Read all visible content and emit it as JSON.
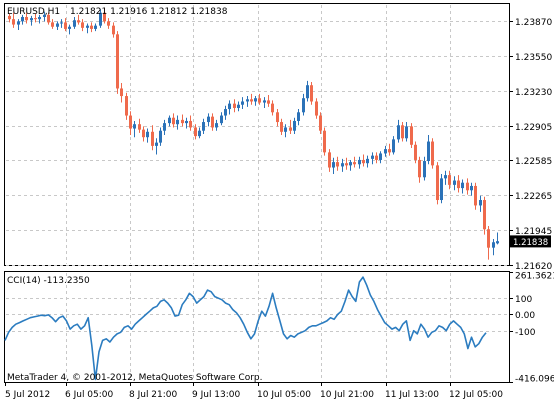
{
  "header": {
    "symbol_timeframe": "EURUSD,H1",
    "ohlc": "1.21821 1.21916 1.21812 1.21838"
  },
  "indicator": {
    "label": "CCI(14) -113.2350"
  },
  "footer": {
    "copyright": "MetaTrader 4, © 2001-2012, MetaQuotes Software Corp."
  },
  "colors": {
    "bull": "#2b72b8",
    "bear": "#ef6a4c",
    "grid": "#c8c8c8",
    "cci_line": "#2b7cc0",
    "price_tag_bg": "#000000",
    "price_tag_fg": "#ffffff"
  },
  "chart_data": [
    {
      "type": "candlestick",
      "title": "EURUSD,H1",
      "ylim": [
        1.2162,
        1.2403
      ],
      "y_ticks": [
        "1.23870",
        "1.23550",
        "1.23230",
        "1.22905",
        "1.22585",
        "1.22265",
        "1.21945",
        "1.21620"
      ],
      "y_tick_values": [
        1.2387,
        1.2355,
        1.2323,
        1.22905,
        1.22585,
        1.22265,
        1.21945,
        1.2162
      ],
      "last_price": "1.21838",
      "x_ticks": [
        "5 Jul 2012",
        "6 Jul 05:00",
        "8 Jul 21:00",
        "9 Jul 13:00",
        "10 Jul 05:00",
        "10 Jul 21:00",
        "11 Jul 13:00",
        "12 Jul 05:00"
      ],
      "grid": true,
      "candles": [
        [
          1.2392,
          1.2394,
          1.2386,
          1.2389
        ],
        [
          1.2389,
          1.2395,
          1.2381,
          1.2384
        ],
        [
          1.2384,
          1.2389,
          1.2379,
          1.2387
        ],
        [
          1.2387,
          1.2393,
          1.2384,
          1.2391
        ],
        [
          1.2391,
          1.2395,
          1.2385,
          1.2388
        ],
        [
          1.2388,
          1.2392,
          1.2383,
          1.239
        ],
        [
          1.239,
          1.2394,
          1.2386,
          1.2389
        ],
        [
          1.2389,
          1.2393,
          1.2385,
          1.2391
        ],
        [
          1.2391,
          1.2396,
          1.2387,
          1.2393
        ],
        [
          1.2393,
          1.2395,
          1.2384,
          1.2386
        ],
        [
          1.2386,
          1.2389,
          1.238,
          1.2382
        ],
        [
          1.2382,
          1.2387,
          1.2379,
          1.2385
        ],
        [
          1.2385,
          1.2389,
          1.2381,
          1.2386
        ],
        [
          1.2386,
          1.239,
          1.2378,
          1.238
        ],
        [
          1.238,
          1.2384,
          1.2375,
          1.2382
        ],
        [
          1.2382,
          1.2391,
          1.238,
          1.2388
        ],
        [
          1.2388,
          1.2393,
          1.2384,
          1.2386
        ],
        [
          1.2386,
          1.2389,
          1.2378,
          1.2381
        ],
        [
          1.2381,
          1.2385,
          1.2376,
          1.2383
        ],
        [
          1.2383,
          1.2386,
          1.2377,
          1.238
        ],
        [
          1.238,
          1.2385,
          1.2378,
          1.2383
        ],
        [
          1.2383,
          1.2398,
          1.2381,
          1.2395
        ],
        [
          1.2395,
          1.2399,
          1.2385,
          1.2387
        ],
        [
          1.2387,
          1.239,
          1.238,
          1.2383
        ],
        [
          1.2383,
          1.2386,
          1.2372,
          1.2375
        ],
        [
          1.2375,
          1.2378,
          1.232,
          1.2325
        ],
        [
          1.2325,
          1.233,
          1.2312,
          1.2318
        ],
        [
          1.2318,
          1.2321,
          1.2296,
          1.23
        ],
        [
          1.23,
          1.2304,
          1.2282,
          1.2288
        ],
        [
          1.2288,
          1.2295,
          1.228,
          1.2292
        ],
        [
          1.2292,
          1.2297,
          1.2284,
          1.2287
        ],
        [
          1.2287,
          1.229,
          1.2276,
          1.228
        ],
        [
          1.228,
          1.2288,
          1.2275,
          1.2285
        ],
        [
          1.2285,
          1.2291,
          1.2268,
          1.2272
        ],
        [
          1.2272,
          1.2279,
          1.2264,
          1.2275
        ],
        [
          1.2275,
          1.2289,
          1.2272,
          1.2286
        ],
        [
          1.2286,
          1.2296,
          1.2282,
          1.2293
        ],
        [
          1.2293,
          1.23,
          1.229,
          1.2298
        ],
        [
          1.2298,
          1.2302,
          1.2289,
          1.2292
        ],
        [
          1.2292,
          1.23,
          1.2287,
          1.2296
        ],
        [
          1.2296,
          1.2301,
          1.229,
          1.2293
        ],
        [
          1.2293,
          1.2298,
          1.2288,
          1.2295
        ],
        [
          1.2295,
          1.23,
          1.2286,
          1.2289
        ],
        [
          1.2289,
          1.2292,
          1.2278,
          1.2281
        ],
        [
          1.2281,
          1.2289,
          1.2279,
          1.2286
        ],
        [
          1.2286,
          1.2297,
          1.2283,
          1.2294
        ],
        [
          1.2294,
          1.2302,
          1.229,
          1.2299
        ],
        [
          1.2299,
          1.2302,
          1.2286,
          1.2289
        ],
        [
          1.2289,
          1.2296,
          1.2286,
          1.2293
        ],
        [
          1.2293,
          1.2303,
          1.2291,
          1.23
        ],
        [
          1.23,
          1.2309,
          1.2296,
          1.2306
        ],
        [
          1.2306,
          1.2314,
          1.2301,
          1.2311
        ],
        [
          1.2311,
          1.2315,
          1.2303,
          1.2307
        ],
        [
          1.2307,
          1.2313,
          1.2304,
          1.231
        ],
        [
          1.231,
          1.2317,
          1.2306,
          1.2313
        ],
        [
          1.2313,
          1.2318,
          1.2308,
          1.2315
        ],
        [
          1.2315,
          1.232,
          1.231,
          1.2313
        ],
        [
          1.2313,
          1.2318,
          1.2309,
          1.2316
        ],
        [
          1.2316,
          1.232,
          1.231,
          1.2312
        ],
        [
          1.2312,
          1.2317,
          1.2307,
          1.2314
        ],
        [
          1.2314,
          1.2319,
          1.2308,
          1.2311
        ],
        [
          1.2311,
          1.2314,
          1.23,
          1.2303
        ],
        [
          1.2303,
          1.2306,
          1.229,
          1.2294
        ],
        [
          1.2294,
          1.2297,
          1.2282,
          1.2285
        ],
        [
          1.2285,
          1.2292,
          1.228,
          1.2289
        ],
        [
          1.2289,
          1.2296,
          1.2283,
          1.2286
        ],
        [
          1.2286,
          1.2298,
          1.2283,
          1.2295
        ],
        [
          1.2295,
          1.2306,
          1.2291,
          1.2303
        ],
        [
          1.2303,
          1.232,
          1.23,
          1.2316
        ],
        [
          1.2316,
          1.2332,
          1.2313,
          1.2328
        ],
        [
          1.2328,
          1.2331,
          1.231,
          1.2313
        ],
        [
          1.2313,
          1.2316,
          1.2297,
          1.23
        ],
        [
          1.23,
          1.2303,
          1.2283,
          1.2286
        ],
        [
          1.2286,
          1.2289,
          1.2263,
          1.2266
        ],
        [
          1.2266,
          1.2269,
          1.2248,
          1.2252
        ],
        [
          1.2252,
          1.2261,
          1.2246,
          1.2257
        ],
        [
          1.2257,
          1.2262,
          1.2249,
          1.2253
        ],
        [
          1.2253,
          1.226,
          1.2248,
          1.2256
        ],
        [
          1.2256,
          1.2261,
          1.225,
          1.2254
        ],
        [
          1.2254,
          1.2259,
          1.2249,
          1.2257
        ],
        [
          1.2257,
          1.2262,
          1.2252,
          1.2255
        ],
        [
          1.2255,
          1.2262,
          1.2251,
          1.2259
        ],
        [
          1.2259,
          1.2264,
          1.2253,
          1.2256
        ],
        [
          1.2256,
          1.2263,
          1.2252,
          1.226
        ],
        [
          1.226,
          1.2266,
          1.2255,
          1.2263
        ],
        [
          1.2263,
          1.2266,
          1.2256,
          1.2259
        ],
        [
          1.2259,
          1.2267,
          1.2256,
          1.2265
        ],
        [
          1.2265,
          1.2272,
          1.2262,
          1.2269
        ],
        [
          1.2269,
          1.2274,
          1.2263,
          1.2266
        ],
        [
          1.2266,
          1.2281,
          1.2264,
          1.2278
        ],
        [
          1.2278,
          1.2296,
          1.2275,
          1.2291
        ],
        [
          1.2291,
          1.2294,
          1.2276,
          1.2279
        ],
        [
          1.2279,
          1.2294,
          1.2276,
          1.229
        ],
        [
          1.229,
          1.2293,
          1.227,
          1.2273
        ],
        [
          1.2273,
          1.2276,
          1.2256,
          1.2259
        ],
        [
          1.2259,
          1.2262,
          1.2238,
          1.2243
        ],
        [
          1.2243,
          1.2262,
          1.224,
          1.2258
        ],
        [
          1.2258,
          1.2282,
          1.2255,
          1.2276
        ],
        [
          1.2276,
          1.2279,
          1.2251,
          1.2254
        ],
        [
          1.2254,
          1.2257,
          1.2218,
          1.2222
        ],
        [
          1.2222,
          1.2246,
          1.2219,
          1.2242
        ],
        [
          1.2242,
          1.2249,
          1.2236,
          1.2245
        ],
        [
          1.2245,
          1.2249,
          1.2232,
          1.2236
        ],
        [
          1.2236,
          1.2244,
          1.2231,
          1.224
        ],
        [
          1.224,
          1.2245,
          1.2229,
          1.2233
        ],
        [
          1.2233,
          1.2241,
          1.2228,
          1.2238
        ],
        [
          1.2238,
          1.2242,
          1.2227,
          1.2231
        ],
        [
          1.2231,
          1.2238,
          1.2226,
          1.2235
        ],
        [
          1.2235,
          1.2238,
          1.2213,
          1.2217
        ],
        [
          1.2217,
          1.2226,
          1.2211,
          1.2222
        ],
        [
          1.2222,
          1.2225,
          1.219,
          1.2195
        ],
        [
          1.2195,
          1.2198,
          1.2167,
          1.2178
        ],
        [
          1.2178,
          1.2186,
          1.2171,
          1.2183
        ],
        [
          1.2182,
          1.2192,
          1.2181,
          1.2184
        ]
      ]
    },
    {
      "type": "line",
      "title": "CCI(14) -113.2350",
      "ylim": [
        -416.096,
        261.3621
      ],
      "y_ticks": [
        "261.3621",
        "100",
        "0.00",
        "-100",
        "-416.096"
      ],
      "y_tick_values": [
        261.3621,
        100,
        0,
        -100,
        -416.096
      ],
      "reference_lines": [
        100,
        -100
      ],
      "values": [
        -160,
        -110,
        -80,
        -60,
        -50,
        -40,
        -30,
        -20,
        -15,
        -10,
        -5,
        -8,
        -3,
        -20,
        -45,
        -20,
        -10,
        -40,
        -90,
        -70,
        -60,
        -90,
        -70,
        -20,
        -190,
        -400,
        -230,
        -160,
        -150,
        -170,
        -140,
        -120,
        -110,
        -80,
        -70,
        -90,
        -60,
        -40,
        -20,
        0,
        20,
        40,
        50,
        80,
        90,
        70,
        40,
        -10,
        -5,
        60,
        90,
        130,
        110,
        70,
        90,
        110,
        150,
        140,
        110,
        100,
        90,
        70,
        60,
        30,
        10,
        -20,
        -60,
        -110,
        -150,
        -120,
        -40,
        20,
        -10,
        50,
        130,
        40,
        -40,
        -120,
        -150,
        -130,
        -140,
        -120,
        -110,
        -100,
        -80,
        -70,
        -70,
        -60,
        -50,
        -40,
        -20,
        -30,
        0,
        20,
        80,
        150,
        110,
        80,
        200,
        230,
        180,
        120,
        80,
        30,
        -10,
        -50,
        -70,
        -90,
        -80,
        -100,
        -60,
        -40,
        -160,
        -100,
        -120,
        -60,
        -90,
        -140,
        -110,
        -100,
        -70,
        -80,
        -100,
        -60,
        -40,
        -60,
        -80,
        -120,
        -210,
        -140,
        -200,
        -180,
        -140,
        -113
      ]
    }
  ],
  "time_axis": {
    "x_ticks": [
      "5 Jul 2012",
      "6 Jul 05:00",
      "8 Jul 21:00",
      "9 Jul 13:00",
      "10 Jul 05:00",
      "10 Jul 21:00",
      "11 Jul 13:00",
      "12 Jul 05:00"
    ]
  }
}
